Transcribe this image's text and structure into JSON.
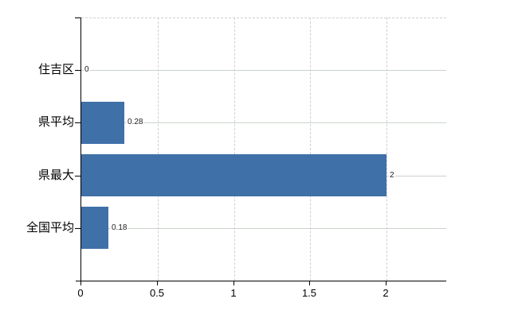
{
  "chart_data": {
    "type": "bar",
    "orientation": "horizontal",
    "title": "",
    "categories": [
      "住吉区",
      "県平均",
      "県最大",
      "全国平均"
    ],
    "values": [
      0,
      0.28,
      2,
      0.18
    ],
    "value_labels": [
      "0",
      "0.28",
      "2",
      "0.18"
    ],
    "x_ticks": [
      0,
      0.5,
      1,
      1.5,
      2
    ],
    "x_tick_labels": [
      "0",
      "0.5",
      "1",
      "1.5",
      "2"
    ],
    "xlim": [
      0,
      2.39
    ],
    "legend": null,
    "grid": {
      "vertical_style": "dashed",
      "horizontal_style": "solid",
      "plot_top_border": "dashed"
    }
  },
  "colors": {
    "bar": "#4070a8",
    "axis": "#000000",
    "vertical_grid": "#d2cfd2",
    "horizontal_grid": "#c9d3c9",
    "category_label": "#000000",
    "tick_label": "#000000",
    "data_label": "#1c1c1c",
    "background": "#ffffff"
  }
}
